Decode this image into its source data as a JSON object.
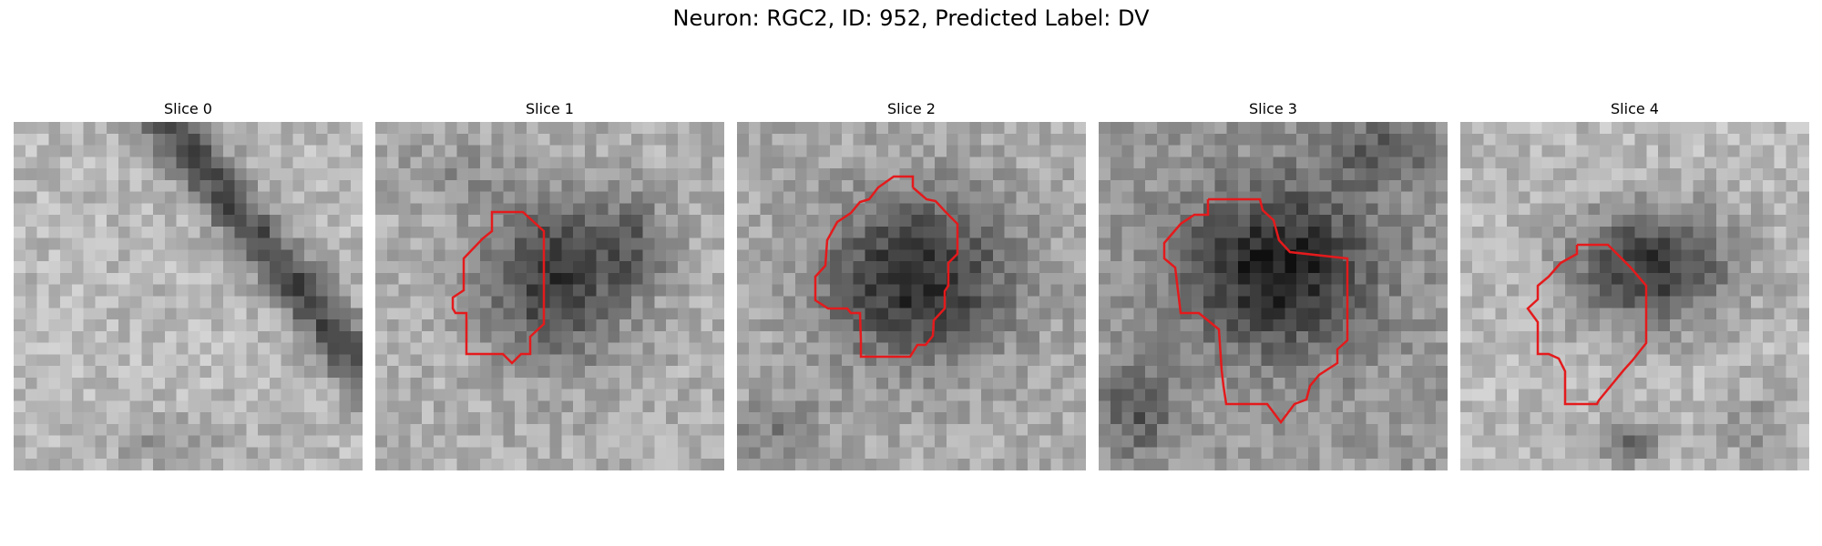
{
  "figure": {
    "title": "Neuron: RGC2, ID: 952, Predicted Label: DV"
  },
  "panels": [
    {
      "title": "Slice 0",
      "has_contour": false
    },
    {
      "title": "Slice 1",
      "has_contour": true
    },
    {
      "title": "Slice 2",
      "has_contour": true
    },
    {
      "title": "Slice 3",
      "has_contour": true
    },
    {
      "title": "Slice 4",
      "has_contour": true
    }
  ],
  "colors": {
    "contour": "#e41a1c",
    "background": "#ffffff"
  },
  "colormap": "gray"
}
